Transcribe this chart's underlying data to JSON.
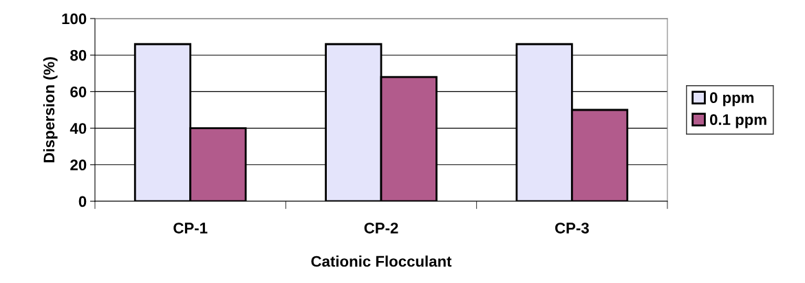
{
  "chart_data": {
    "type": "bar",
    "xlabel": "Cationic Flocculant",
    "ylabel": "Dispersion (%)",
    "categories": [
      "CP-1",
      "CP-2",
      "CP-3"
    ],
    "series": [
      {
        "name": "0 ppm",
        "color": "#e4e4fb",
        "values": [
          86,
          86,
          86
        ]
      },
      {
        "name": "0.1 ppm",
        "color": "#b25b8c",
        "values": [
          40,
          68,
          50
        ]
      }
    ],
    "ylim": [
      0,
      100
    ],
    "yticks": [
      0,
      20,
      40,
      60,
      80,
      100
    ],
    "grid": "y",
    "legend": "right"
  }
}
